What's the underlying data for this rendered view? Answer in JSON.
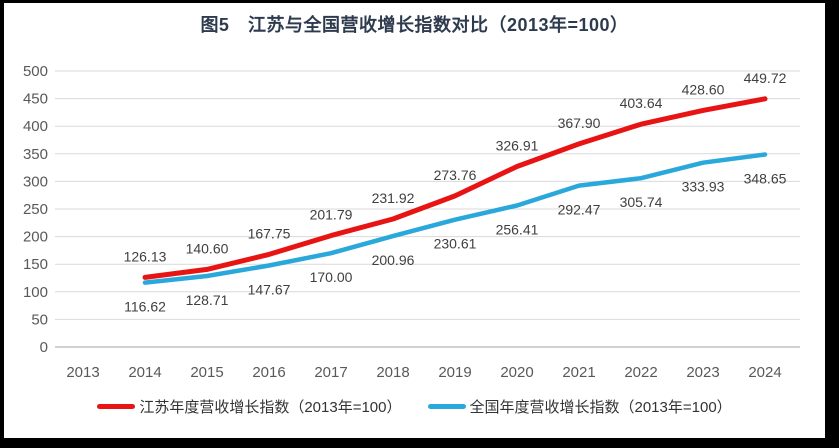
{
  "figure": {
    "title": "图5　江苏与全国营收增长指数对比（2013年=100）"
  },
  "colors": {
    "jiangsu_line": "#e81414",
    "national_line": "#2aa8dc",
    "gridline": "#d9d9d9",
    "axis_line": "#a6a6a6",
    "tick_label": "#595959",
    "data_label": "#404040",
    "title": "#2e3b4e",
    "frame": "#000000",
    "background": "#ffffff"
  },
  "chart_data": {
    "type": "line",
    "title": "图5　江苏与全国营收增长指数对比（2013年=100）",
    "xlabel": "",
    "ylabel": "",
    "categories": [
      2013,
      2014,
      2015,
      2016,
      2017,
      2018,
      2019,
      2020,
      2021,
      2022,
      2023,
      2024
    ],
    "series": [
      {
        "name": "江苏年度营收增长指数（2013年=100）",
        "color": "#e81414",
        "stroke_width": 5,
        "label_position": "above",
        "values": [
          null,
          126.13,
          140.6,
          167.75,
          201.79,
          231.92,
          273.76,
          326.91,
          367.9,
          403.64,
          428.6,
          449.72
        ]
      },
      {
        "name": "全国年度营收增长指数（2013年=100）",
        "color": "#2aa8dc",
        "stroke_width": 4.5,
        "label_position": "below",
        "values": [
          null,
          116.62,
          128.71,
          147.67,
          170.0,
          200.96,
          230.61,
          256.41,
          292.47,
          305.74,
          333.93,
          348.65
        ]
      }
    ],
    "ylim": [
      0,
      500
    ],
    "ytick_step": 50,
    "grid": true,
    "data_labels": true,
    "label_decimals": 2,
    "legend_position": "bottom"
  }
}
